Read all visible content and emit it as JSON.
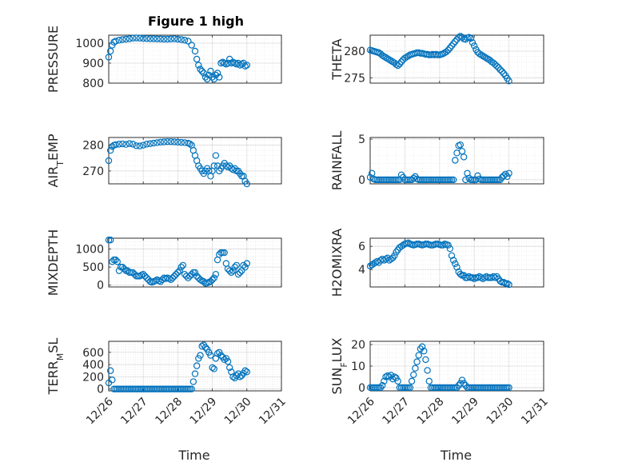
{
  "figure": {
    "title": "Figure 1 high",
    "marker_color": "#0072BD"
  },
  "x_ticks": [
    {
      "v": 0,
      "label": "12/26"
    },
    {
      "v": 1,
      "label": "12/27"
    },
    {
      "v": 2,
      "label": "12/28"
    },
    {
      "v": 3,
      "label": "12/29"
    },
    {
      "v": 4,
      "label": "12/30"
    },
    {
      "v": 5,
      "label": "12/31"
    }
  ],
  "x_axis_label": "Time",
  "chart_data": [
    {
      "type": "scatter",
      "ylabel": "PRESSURE",
      "title": "Figure 1 high",
      "xlim": [
        0,
        5
      ],
      "ylim": [
        800,
        1040
      ],
      "yticks": [
        800,
        900,
        1000
      ],
      "grid": true,
      "x": [
        0,
        0.05,
        0.1,
        0.15,
        0.2,
        0.3,
        0.4,
        0.5,
        0.6,
        0.7,
        0.8,
        0.9,
        1.0,
        1.1,
        1.2,
        1.3,
        1.4,
        1.5,
        1.6,
        1.7,
        1.8,
        1.9,
        2.0,
        2.1,
        2.2,
        2.3,
        2.4,
        2.5,
        2.55,
        2.6,
        2.65,
        2.7,
        2.75,
        2.8,
        2.85,
        2.9,
        2.95,
        3.0,
        3.05,
        3.1,
        3.15,
        3.2,
        3.25,
        3.3,
        3.35,
        3.4,
        3.45,
        3.5,
        3.55,
        3.6,
        3.65,
        3.7,
        3.75,
        3.8,
        3.85,
        3.9,
        3.95,
        4.0
      ],
      "y": [
        930,
        960,
        990,
        1005,
        1010,
        1015,
        1018,
        1020,
        1022,
        1025,
        1026,
        1025,
        1024,
        1023,
        1022,
        1022,
        1021,
        1021,
        1020,
        1020,
        1021,
        1022,
        1020,
        1018,
        1015,
        1010,
        990,
        960,
        920,
        890,
        870,
        860,
        850,
        830,
        820,
        840,
        860,
        830,
        820,
        840,
        850,
        830,
        900,
        905,
        900,
        895,
        900,
        920,
        900,
        905,
        900,
        895,
        900,
        890,
        895,
        900,
        885,
        890
      ]
    },
    {
      "type": "scatter",
      "ylabel": "THETA",
      "xlim": [
        0,
        5
      ],
      "ylim": [
        274,
        283
      ],
      "yticks": [
        275,
        280
      ],
      "grid": true,
      "x": [
        0,
        0.05,
        0.1,
        0.15,
        0.2,
        0.25,
        0.3,
        0.35,
        0.4,
        0.45,
        0.5,
        0.55,
        0.6,
        0.65,
        0.7,
        0.75,
        0.8,
        0.85,
        0.9,
        0.95,
        1.0,
        1.05,
        1.1,
        1.15,
        1.2,
        1.25,
        1.3,
        1.35,
        1.4,
        1.45,
        1.5,
        1.55,
        1.6,
        1.65,
        1.7,
        1.75,
        1.8,
        1.85,
        1.9,
        1.95,
        2.0,
        2.05,
        2.1,
        2.15,
        2.2,
        2.25,
        2.3,
        2.35,
        2.4,
        2.45,
        2.5,
        2.55,
        2.6,
        2.65,
        2.7,
        2.75,
        2.8,
        2.85,
        2.9,
        2.95,
        3.0,
        3.05,
        3.1,
        3.15,
        3.2,
        3.25,
        3.3,
        3.35,
        3.4,
        3.45,
        3.5,
        3.55,
        3.6,
        3.65,
        3.7,
        3.75,
        3.8,
        3.85,
        3.9,
        3.95,
        4.0
      ],
      "y": [
        280.2,
        280.1,
        280,
        279.9,
        279.8,
        279.7,
        279.5,
        279.2,
        279,
        278.8,
        278.6,
        278.4,
        278.2,
        278,
        277.8,
        277.5,
        277.3,
        277.6,
        278,
        278.4,
        278.7,
        278.9,
        279.1,
        279.3,
        279.4,
        279.5,
        279.6,
        279.7,
        279.7,
        279.6,
        279.6,
        279.5,
        279.4,
        279.4,
        279.3,
        279.3,
        279.4,
        279.3,
        279.4,
        279.3,
        279.3,
        279.4,
        279.5,
        279.7,
        279.9,
        280.2,
        280.6,
        281,
        281.4,
        281.8,
        282.2,
        282.6,
        282.8,
        282.6,
        282.3,
        282.2,
        282.5,
        282.6,
        282.4,
        281.6,
        281,
        280.3,
        279.8,
        279.5,
        279.3,
        279.1,
        278.9,
        278.7,
        278.5,
        278.3,
        278,
        277.8,
        277.5,
        277.2,
        276.9,
        276.5,
        276.2,
        275.8,
        275.4,
        274.9,
        274.4
      ]
    },
    {
      "type": "scatter",
      "ylabel": "AIR_TEMP",
      "xlim": [
        0,
        5
      ],
      "ylim": [
        265,
        283
      ],
      "yticks": [
        270,
        280
      ],
      "grid": true,
      "x": [
        0,
        0.05,
        0.1,
        0.15,
        0.2,
        0.3,
        0.4,
        0.5,
        0.6,
        0.7,
        0.8,
        0.9,
        1.0,
        1.1,
        1.2,
        1.3,
        1.4,
        1.5,
        1.6,
        1.7,
        1.8,
        1.9,
        2.0,
        2.1,
        2.2,
        2.3,
        2.35,
        2.4,
        2.45,
        2.5,
        2.55,
        2.6,
        2.65,
        2.7,
        2.75,
        2.8,
        2.85,
        2.9,
        2.95,
        3.0,
        3.05,
        3.1,
        3.15,
        3.2,
        3.25,
        3.3,
        3.35,
        3.4,
        3.45,
        3.5,
        3.55,
        3.6,
        3.65,
        3.7,
        3.75,
        3.8,
        3.85,
        3.9,
        3.95,
        4.0
      ],
      "y": [
        274,
        278,
        279.5,
        280,
        280.2,
        280.4,
        280.5,
        280.3,
        280.6,
        280.4,
        279.8,
        279.7,
        280,
        280.4,
        280.6,
        280.8,
        281,
        281.2,
        281.3,
        281.4,
        281.4,
        281.3,
        281.2,
        281.1,
        281,
        280.8,
        280.5,
        280,
        278,
        276,
        274,
        272,
        271,
        270,
        269,
        270,
        271,
        270,
        268,
        270,
        272,
        276,
        272,
        270,
        271,
        272,
        273,
        272,
        271.5,
        272,
        271,
        270.5,
        271,
        270,
        270,
        269,
        268,
        268,
        266,
        265
      ]
    },
    {
      "type": "scatter",
      "ylabel": "RAINFALL",
      "xlim": [
        0,
        5
      ],
      "ylim": [
        -0.5,
        5.2
      ],
      "yticks": [
        0,
        5
      ],
      "grid": true,
      "x": [
        0,
        0.05,
        0.1,
        0.15,
        0.2,
        0.25,
        0.3,
        0.35,
        0.4,
        0.45,
        0.5,
        0.55,
        0.6,
        0.65,
        0.7,
        0.75,
        0.8,
        0.85,
        0.9,
        0.95,
        1.0,
        1.05,
        1.1,
        1.15,
        1.2,
        1.25,
        1.3,
        1.35,
        1.4,
        1.45,
        1.5,
        1.55,
        1.6,
        1.65,
        1.7,
        1.75,
        1.8,
        1.85,
        1.9,
        1.95,
        2.0,
        2.05,
        2.1,
        2.15,
        2.2,
        2.25,
        2.3,
        2.35,
        2.4,
        2.45,
        2.5,
        2.55,
        2.6,
        2.65,
        2.7,
        2.75,
        2.8,
        2.85,
        2.9,
        2.95,
        3.0,
        3.05,
        3.1,
        3.15,
        3.2,
        3.25,
        3.3,
        3.35,
        3.4,
        3.45,
        3.5,
        3.55,
        3.6,
        3.65,
        3.7,
        3.75,
        3.8,
        3.85,
        3.9,
        3.95,
        4.0
      ],
      "y": [
        0.3,
        0.8,
        0.1,
        0,
        0,
        0,
        0,
        0,
        0,
        0,
        0,
        0,
        0,
        0,
        0,
        0,
        0,
        0,
        0.6,
        0.3,
        0,
        0,
        0,
        0,
        0,
        0.2,
        0.4,
        0.1,
        0,
        0,
        0,
        0,
        0,
        0,
        0,
        0,
        0,
        0,
        0,
        0,
        0,
        0,
        0,
        0,
        0,
        0,
        0,
        0,
        0,
        2.4,
        3.3,
        4.2,
        4.3,
        3.5,
        2.8,
        0,
        0.8,
        0.2,
        0,
        0,
        0,
        0,
        0.5,
        0.1,
        0,
        0,
        0,
        0,
        0,
        0,
        0,
        0,
        0,
        0,
        0,
        0,
        0.3,
        0.5,
        0.7,
        0.4,
        0.8
      ]
    },
    {
      "type": "scatter",
      "ylabel": "MIXDEPTH",
      "xlim": [
        0,
        5
      ],
      "ylim": [
        -50,
        1300
      ],
      "yticks": [
        0,
        500,
        1000
      ],
      "grid": true,
      "x": [
        0,
        0.05,
        0.1,
        0.15,
        0.2,
        0.25,
        0.3,
        0.35,
        0.4,
        0.45,
        0.5,
        0.55,
        0.6,
        0.65,
        0.7,
        0.75,
        0.8,
        0.85,
        0.9,
        0.95,
        1.0,
        1.05,
        1.1,
        1.15,
        1.2,
        1.25,
        1.3,
        1.35,
        1.4,
        1.45,
        1.5,
        1.55,
        1.6,
        1.65,
        1.7,
        1.75,
        1.8,
        1.85,
        1.9,
        1.95,
        2.0,
        2.05,
        2.1,
        2.15,
        2.2,
        2.25,
        2.3,
        2.35,
        2.4,
        2.45,
        2.5,
        2.55,
        2.6,
        2.65,
        2.7,
        2.75,
        2.8,
        2.85,
        2.9,
        2.95,
        3.0,
        3.05,
        3.1,
        3.15,
        3.2,
        3.25,
        3.3,
        3.35,
        3.4,
        3.45,
        3.5,
        3.55,
        3.6,
        3.65,
        3.7,
        3.75,
        3.8,
        3.85,
        3.9,
        3.95,
        4.0
      ],
      "y": [
        1250,
        1250,
        650,
        700,
        700,
        650,
        400,
        500,
        500,
        450,
        400,
        400,
        350,
        350,
        350,
        300,
        250,
        250,
        250,
        280,
        300,
        250,
        200,
        150,
        100,
        80,
        100,
        120,
        150,
        120,
        100,
        150,
        200,
        180,
        200,
        180,
        150,
        200,
        250,
        300,
        350,
        400,
        500,
        550,
        300,
        250,
        200,
        250,
        300,
        350,
        350,
        250,
        200,
        150,
        120,
        100,
        50,
        60,
        80,
        100,
        150,
        200,
        300,
        700,
        850,
        900,
        900,
        900,
        600,
        450,
        400,
        350,
        400,
        500,
        550,
        300,
        350,
        400,
        550,
        500,
        600
      ]
    },
    {
      "type": "scatter",
      "ylabel": "H2OMIXRA",
      "xlim": [
        0,
        5
      ],
      "ylim": [
        2.5,
        6.7
      ],
      "yticks": [
        4,
        6
      ],
      "grid": true,
      "x": [
        0,
        0.05,
        0.1,
        0.15,
        0.2,
        0.25,
        0.3,
        0.35,
        0.4,
        0.45,
        0.5,
        0.55,
        0.6,
        0.65,
        0.7,
        0.75,
        0.8,
        0.85,
        0.9,
        0.95,
        1.0,
        1.05,
        1.1,
        1.15,
        1.2,
        1.25,
        1.3,
        1.35,
        1.4,
        1.45,
        1.5,
        1.55,
        1.6,
        1.65,
        1.7,
        1.75,
        1.8,
        1.85,
        1.9,
        1.95,
        2.0,
        2.05,
        2.1,
        2.15,
        2.2,
        2.25,
        2.3,
        2.35,
        2.4,
        2.45,
        2.5,
        2.55,
        2.6,
        2.65,
        2.7,
        2.75,
        2.8,
        2.85,
        2.9,
        2.95,
        3.0,
        3.05,
        3.1,
        3.15,
        3.2,
        3.25,
        3.3,
        3.35,
        3.4,
        3.45,
        3.5,
        3.55,
        3.6,
        3.65,
        3.7,
        3.75,
        3.8,
        3.85,
        3.9,
        3.95,
        4.0
      ],
      "y": [
        4.3,
        4.4,
        4.5,
        4.6,
        4.7,
        4.6,
        4.8,
        4.9,
        4.8,
        4.9,
        5,
        4.8,
        4.9,
        5,
        5.2,
        5.5,
        5.7,
        5.9,
        6,
        6.1,
        6.2,
        6.25,
        6.3,
        6.2,
        6.15,
        6.1,
        6.15,
        6.2,
        6.2,
        6.15,
        6.1,
        6.15,
        6.2,
        6.2,
        6.15,
        6.1,
        6.1,
        6.15,
        6.2,
        6.2,
        6.15,
        6.1,
        6.1,
        6.2,
        6.15,
        6.1,
        5.8,
        5.2,
        4.8,
        4.5,
        4.2,
        3.8,
        3.6,
        3.5,
        3.5,
        3.3,
        3.3,
        3.4,
        3.3,
        3.3,
        3.2,
        3.3,
        3.3,
        3.4,
        3.3,
        3.2,
        3.3,
        3.4,
        3.3,
        3.3,
        3.3,
        3.4,
        3.3,
        3.4,
        3.2,
        3,
        2.9,
        2.9,
        2.8,
        2.8,
        2.7
      ]
    },
    {
      "type": "scatter",
      "ylabel": "TERR_MSL",
      "xlim": [
        0,
        5
      ],
      "ylim": [
        -30,
        780
      ],
      "yticks": [
        0,
        200,
        400,
        600
      ],
      "grid": true,
      "x": [
        0,
        0.05,
        0.1,
        0.15,
        0.2,
        0.25,
        0.3,
        0.35,
        0.4,
        0.45,
        0.5,
        0.55,
        0.6,
        0.65,
        0.7,
        0.75,
        0.8,
        0.85,
        0.9,
        0.95,
        1.0,
        1.05,
        1.1,
        1.15,
        1.2,
        1.25,
        1.3,
        1.35,
        1.4,
        1.45,
        1.5,
        1.55,
        1.6,
        1.65,
        1.7,
        1.75,
        1.8,
        1.85,
        1.9,
        1.95,
        2.0,
        2.05,
        2.1,
        2.15,
        2.2,
        2.25,
        2.3,
        2.35,
        2.4,
        2.45,
        2.5,
        2.55,
        2.6,
        2.65,
        2.7,
        2.75,
        2.8,
        2.85,
        2.9,
        2.95,
        3.0,
        3.05,
        3.1,
        3.15,
        3.2,
        3.25,
        3.3,
        3.35,
        3.4,
        3.45,
        3.5,
        3.55,
        3.6,
        3.65,
        3.7,
        3.75,
        3.8,
        3.85,
        3.9,
        3.95,
        4.0
      ],
      "y": [
        100,
        300,
        150,
        0,
        0,
        0,
        0,
        0,
        0,
        0,
        0,
        0,
        0,
        0,
        0,
        0,
        0,
        0,
        0,
        0,
        0,
        0,
        0,
        0,
        0,
        0,
        0,
        0,
        0,
        0,
        0,
        0,
        0,
        0,
        0,
        0,
        0,
        0,
        0,
        0,
        0,
        0,
        0,
        0,
        0,
        0,
        0,
        0,
        0,
        120,
        250,
        380,
        500,
        550,
        700,
        720,
        680,
        650,
        600,
        550,
        350,
        330,
        500,
        580,
        600,
        550,
        520,
        480,
        500,
        450,
        350,
        280,
        200,
        180,
        220,
        250,
        200,
        220,
        260,
        300,
        280
      ]
    },
    {
      "type": "scatter",
      "ylabel": "SUN_FLUX",
      "xlim": [
        0,
        5
      ],
      "ylim": [
        -1.5,
        21.5
      ],
      "yticks": [
        0,
        10,
        20
      ],
      "grid": true,
      "x": [
        0,
        0.05,
        0.1,
        0.15,
        0.2,
        0.25,
        0.3,
        0.35,
        0.4,
        0.45,
        0.5,
        0.55,
        0.6,
        0.65,
        0.7,
        0.75,
        0.8,
        0.85,
        0.9,
        0.95,
        1.0,
        1.05,
        1.1,
        1.15,
        1.2,
        1.25,
        1.3,
        1.35,
        1.4,
        1.45,
        1.5,
        1.55,
        1.6,
        1.65,
        1.7,
        1.75,
        1.8,
        1.85,
        1.9,
        1.95,
        2.0,
        2.05,
        2.1,
        2.15,
        2.2,
        2.25,
        2.3,
        2.35,
        2.4,
        2.45,
        2.5,
        2.55,
        2.6,
        2.65,
        2.7,
        2.75,
        2.8,
        2.85,
        2.9,
        2.95,
        3.0,
        3.05,
        3.1,
        3.15,
        3.2,
        3.25,
        3.3,
        3.35,
        3.4,
        3.45,
        3.5,
        3.55,
        3.6,
        3.65,
        3.7,
        3.75,
        3.8,
        3.85,
        3.9,
        3.95,
        4.0
      ],
      "y": [
        0,
        0,
        0,
        0,
        0,
        0,
        0,
        1,
        3,
        5,
        5.5,
        5,
        5.8,
        4,
        5,
        4.5,
        3,
        0,
        0,
        0,
        0,
        0,
        0,
        0,
        3,
        6,
        9,
        12,
        15,
        18,
        19,
        17,
        13,
        8,
        3,
        0,
        0,
        0,
        0,
        0,
        0,
        0,
        0,
        0,
        0,
        0,
        0,
        0,
        0,
        0,
        0,
        1,
        2,
        3.5,
        2,
        1,
        0,
        0,
        0,
        0,
        0,
        0,
        0,
        0,
        0,
        0,
        0,
        0,
        0,
        0,
        0,
        0,
        0,
        0,
        0,
        0,
        0,
        0,
        0,
        0,
        0
      ]
    }
  ]
}
